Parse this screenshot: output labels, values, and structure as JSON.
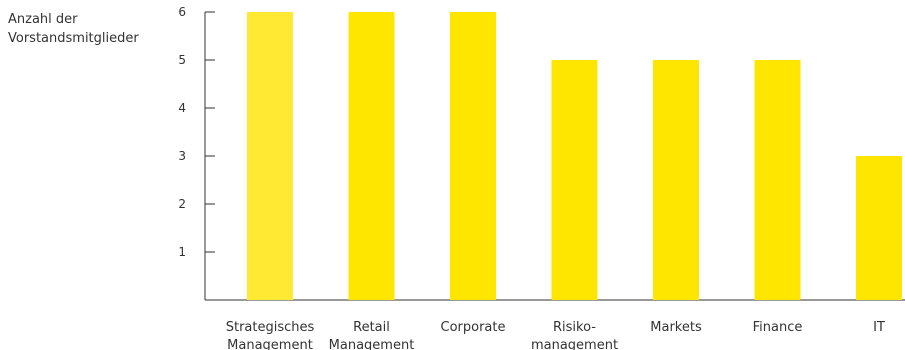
{
  "chart_data": {
    "type": "bar",
    "ylabel": [
      "Anzahl der",
      "Vorstandsmitglieder"
    ],
    "categories": [
      [
        "Strategisches",
        "Management"
      ],
      [
        "Retail",
        "Management"
      ],
      [
        "Corporate"
      ],
      [
        "Risiko-",
        "management"
      ],
      [
        "Markets"
      ],
      [
        "Finance"
      ],
      [
        "IT"
      ]
    ],
    "values": [
      6,
      6,
      6,
      5,
      5,
      5,
      3
    ],
    "yticks": [
      "1",
      "2",
      "3",
      "4",
      "5",
      "6"
    ],
    "ylim": [
      0,
      6.4
    ],
    "grid": false,
    "colors": {
      "first_bar": "#FFE933",
      "bar": "#FFE600",
      "axis": "#333333"
    }
  }
}
